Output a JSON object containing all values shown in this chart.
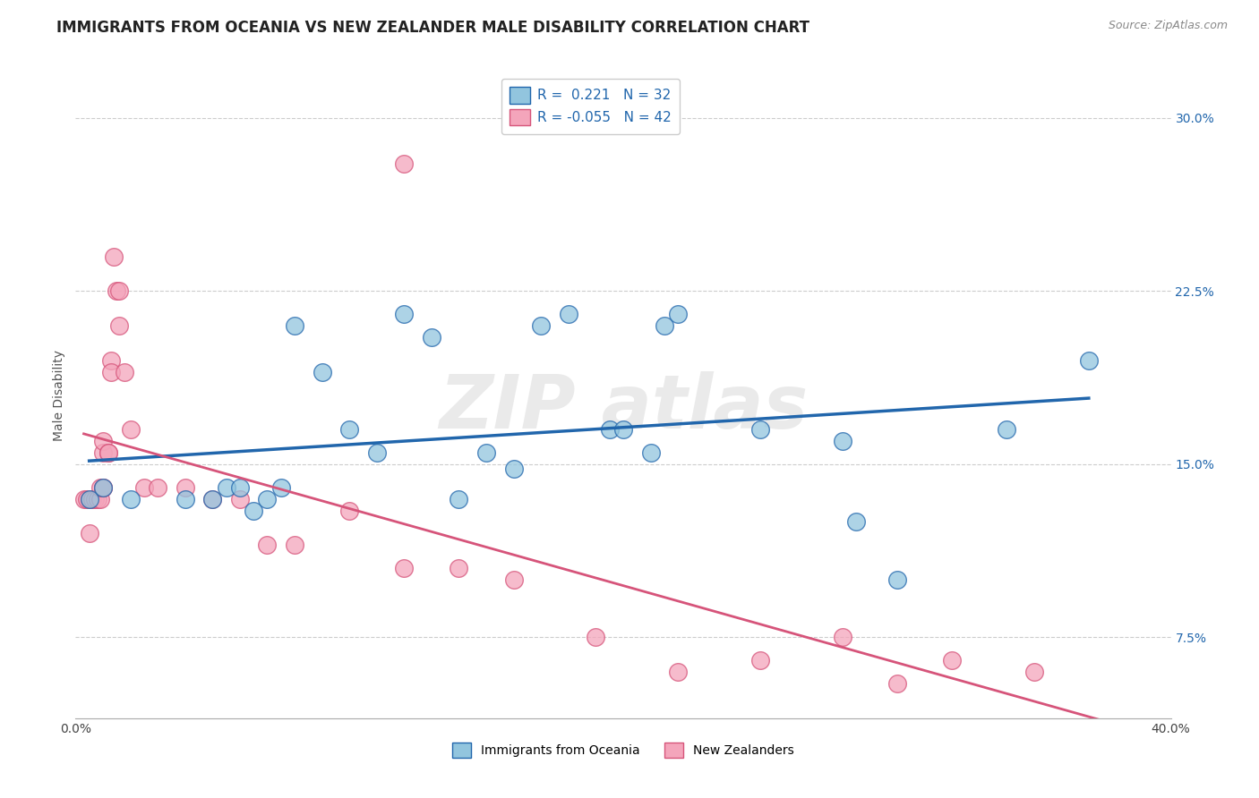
{
  "title": "IMMIGRANTS FROM OCEANIA VS NEW ZEALANDER MALE DISABILITY CORRELATION CHART",
  "source": "Source: ZipAtlas.com",
  "ylabel": "Male Disability",
  "xlim": [
    0.0,
    0.4
  ],
  "ylim": [
    0.04,
    0.32
  ],
  "x_ticks": [
    0.0,
    0.1,
    0.2,
    0.3,
    0.4
  ],
  "x_tick_labels": [
    "0.0%",
    "",
    "",
    "",
    "40.0%"
  ],
  "y_ticks_right": [
    0.075,
    0.15,
    0.225,
    0.3
  ],
  "y_tick_labels_right": [
    "7.5%",
    "15.0%",
    "22.5%",
    "30.0%"
  ],
  "blue_color": "#92c5de",
  "pink_color": "#f4a5bb",
  "blue_line_color": "#2166ac",
  "pink_line_color": "#d6547a",
  "grid_color": "#cccccc",
  "background_color": "#ffffff",
  "title_fontsize": 12,
  "axis_fontsize": 10,
  "tick_fontsize": 10,
  "blue_scatter_x": [
    0.005,
    0.01,
    0.02,
    0.04,
    0.05,
    0.055,
    0.06,
    0.065,
    0.07,
    0.075,
    0.08,
    0.09,
    0.1,
    0.11,
    0.12,
    0.13,
    0.14,
    0.15,
    0.16,
    0.17,
    0.18,
    0.195,
    0.2,
    0.21,
    0.215,
    0.22,
    0.25,
    0.28,
    0.285,
    0.3,
    0.34,
    0.37
  ],
  "blue_scatter_y": [
    0.135,
    0.14,
    0.135,
    0.135,
    0.135,
    0.14,
    0.14,
    0.13,
    0.135,
    0.14,
    0.21,
    0.19,
    0.165,
    0.155,
    0.215,
    0.205,
    0.135,
    0.155,
    0.148,
    0.21,
    0.215,
    0.165,
    0.165,
    0.155,
    0.21,
    0.215,
    0.165,
    0.16,
    0.125,
    0.1,
    0.165,
    0.195
  ],
  "pink_scatter_x": [
    0.003,
    0.004,
    0.005,
    0.005,
    0.006,
    0.007,
    0.008,
    0.009,
    0.009,
    0.01,
    0.01,
    0.01,
    0.01,
    0.012,
    0.012,
    0.013,
    0.013,
    0.014,
    0.015,
    0.016,
    0.016,
    0.018,
    0.02,
    0.025,
    0.03,
    0.04,
    0.05,
    0.06,
    0.07,
    0.08,
    0.1,
    0.12,
    0.14,
    0.16,
    0.19,
    0.22,
    0.25,
    0.28,
    0.3,
    0.32,
    0.35,
    0.12
  ],
  "pink_scatter_y": [
    0.135,
    0.135,
    0.135,
    0.12,
    0.135,
    0.135,
    0.135,
    0.135,
    0.14,
    0.14,
    0.14,
    0.155,
    0.16,
    0.155,
    0.155,
    0.195,
    0.19,
    0.24,
    0.225,
    0.21,
    0.225,
    0.19,
    0.165,
    0.14,
    0.14,
    0.14,
    0.135,
    0.135,
    0.115,
    0.115,
    0.13,
    0.105,
    0.105,
    0.1,
    0.075,
    0.06,
    0.065,
    0.075,
    0.055,
    0.065,
    0.06,
    0.28
  ]
}
